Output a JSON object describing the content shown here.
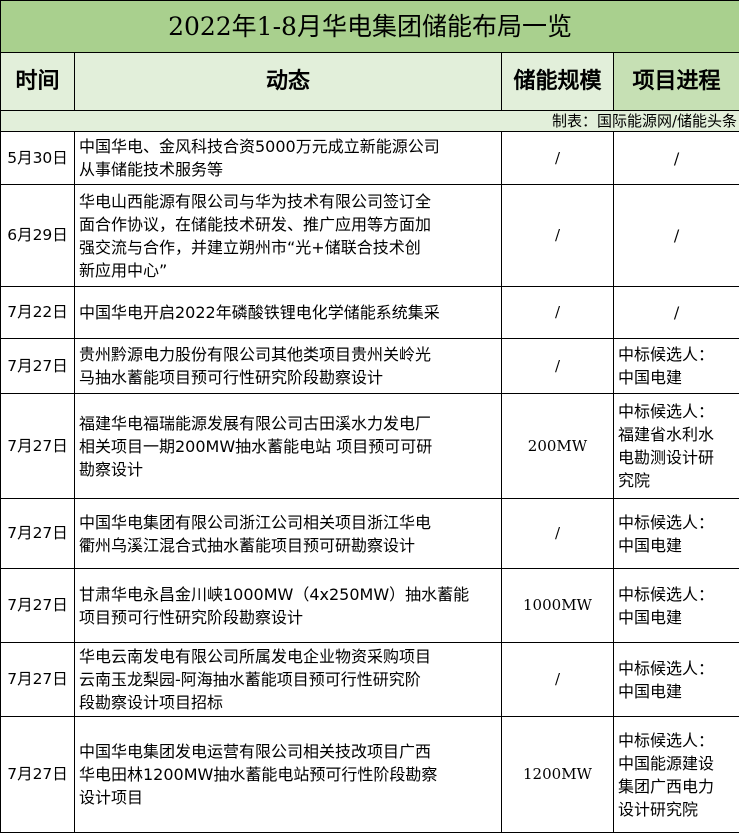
{
  "title": "2022年1-8月华电集团储能布局一览",
  "headers": {
    "time": "时间",
    "event": "动态",
    "scale": "储能规模",
    "progress": "项目进程"
  },
  "credit": "制表：国际能源网/储能头条",
  "rows": [
    {
      "date": "5月30日",
      "event": [
        "中国华电、金风科技合资5000万元成立新能源公司",
        "从事储能技术服务等"
      ],
      "scale": "/",
      "progress": [
        "/"
      ]
    },
    {
      "date": "6月29日",
      "event": [
        "华电山西能源有限公司与华为技术有限公司签订全",
        "面合作协议，在储能技术研发、推广应用等方面加",
        "强交流与合作，并建立朔州市“光+储联合技术创",
        "新应用中心”"
      ],
      "scale": "/",
      "progress": [
        "/"
      ]
    },
    {
      "date": "7月22日",
      "event": [
        "中国华电开启2022年磷酸铁锂电化学储能系统集采"
      ],
      "scale": "/",
      "progress": [
        "/"
      ]
    },
    {
      "date": "7月27日",
      "event": [
        "贵州黔源电力股份有限公司其他类项目贵州关岭光",
        "马抽水蓄能项目预可行性研究阶段勘察设计"
      ],
      "scale": "/",
      "progress": [
        "中标候选人：",
        "中国电建"
      ]
    },
    {
      "date": "7月27日",
      "event": [
        "福建华电福瑞能源发展有限公司古田溪水力发电厂",
        "相关项目一期200MW抽水蓄能电站 项目预可可研",
        "勘察设计"
      ],
      "scale": "200MW",
      "progress": [
        "中标候选人：",
        "福建省水利水",
        "电勘测设计研",
        "究院"
      ]
    },
    {
      "date": "7月27日",
      "event": [
        "中国华电集团有限公司浙江公司相关项目浙江华电",
        "衢州乌溪江混合式抽水蓄能项目预可研勘察设计"
      ],
      "scale": "/",
      "progress": [
        "中标候选人：",
        "中国电建"
      ]
    },
    {
      "date": "7月27日",
      "event": [
        "甘肃华电永昌金川峡1000MW（4x250MW）抽水蓄能",
        "项目预可行性研究阶段勘察设计"
      ],
      "scale": "1000MW",
      "progress": [
        "中标候选人：",
        "中国电建"
      ]
    },
    {
      "date": "7月27日",
      "event": [
        "华电云南发电有限公司所属发电企业物资采购项目",
        "云南玉龙梨园-阿海抽水蓄能项目预可行性研究阶",
        "段勘察设计项目招标"
      ],
      "scale": "/",
      "progress": [
        "中标候选人：",
        "中国电建"
      ]
    },
    {
      "date": "7月27日",
      "event": [
        "中国华电集团发电运营有限公司相关技改项目广西",
        "华电田林1200MW抽水蓄能电站预可行性阶段勘察",
        "设计项目"
      ],
      "scale": "1200MW",
      "progress": [
        "中标候选人：",
        "中国能源建设",
        "集团广西电力",
        "设计研究院"
      ]
    }
  ]
}
